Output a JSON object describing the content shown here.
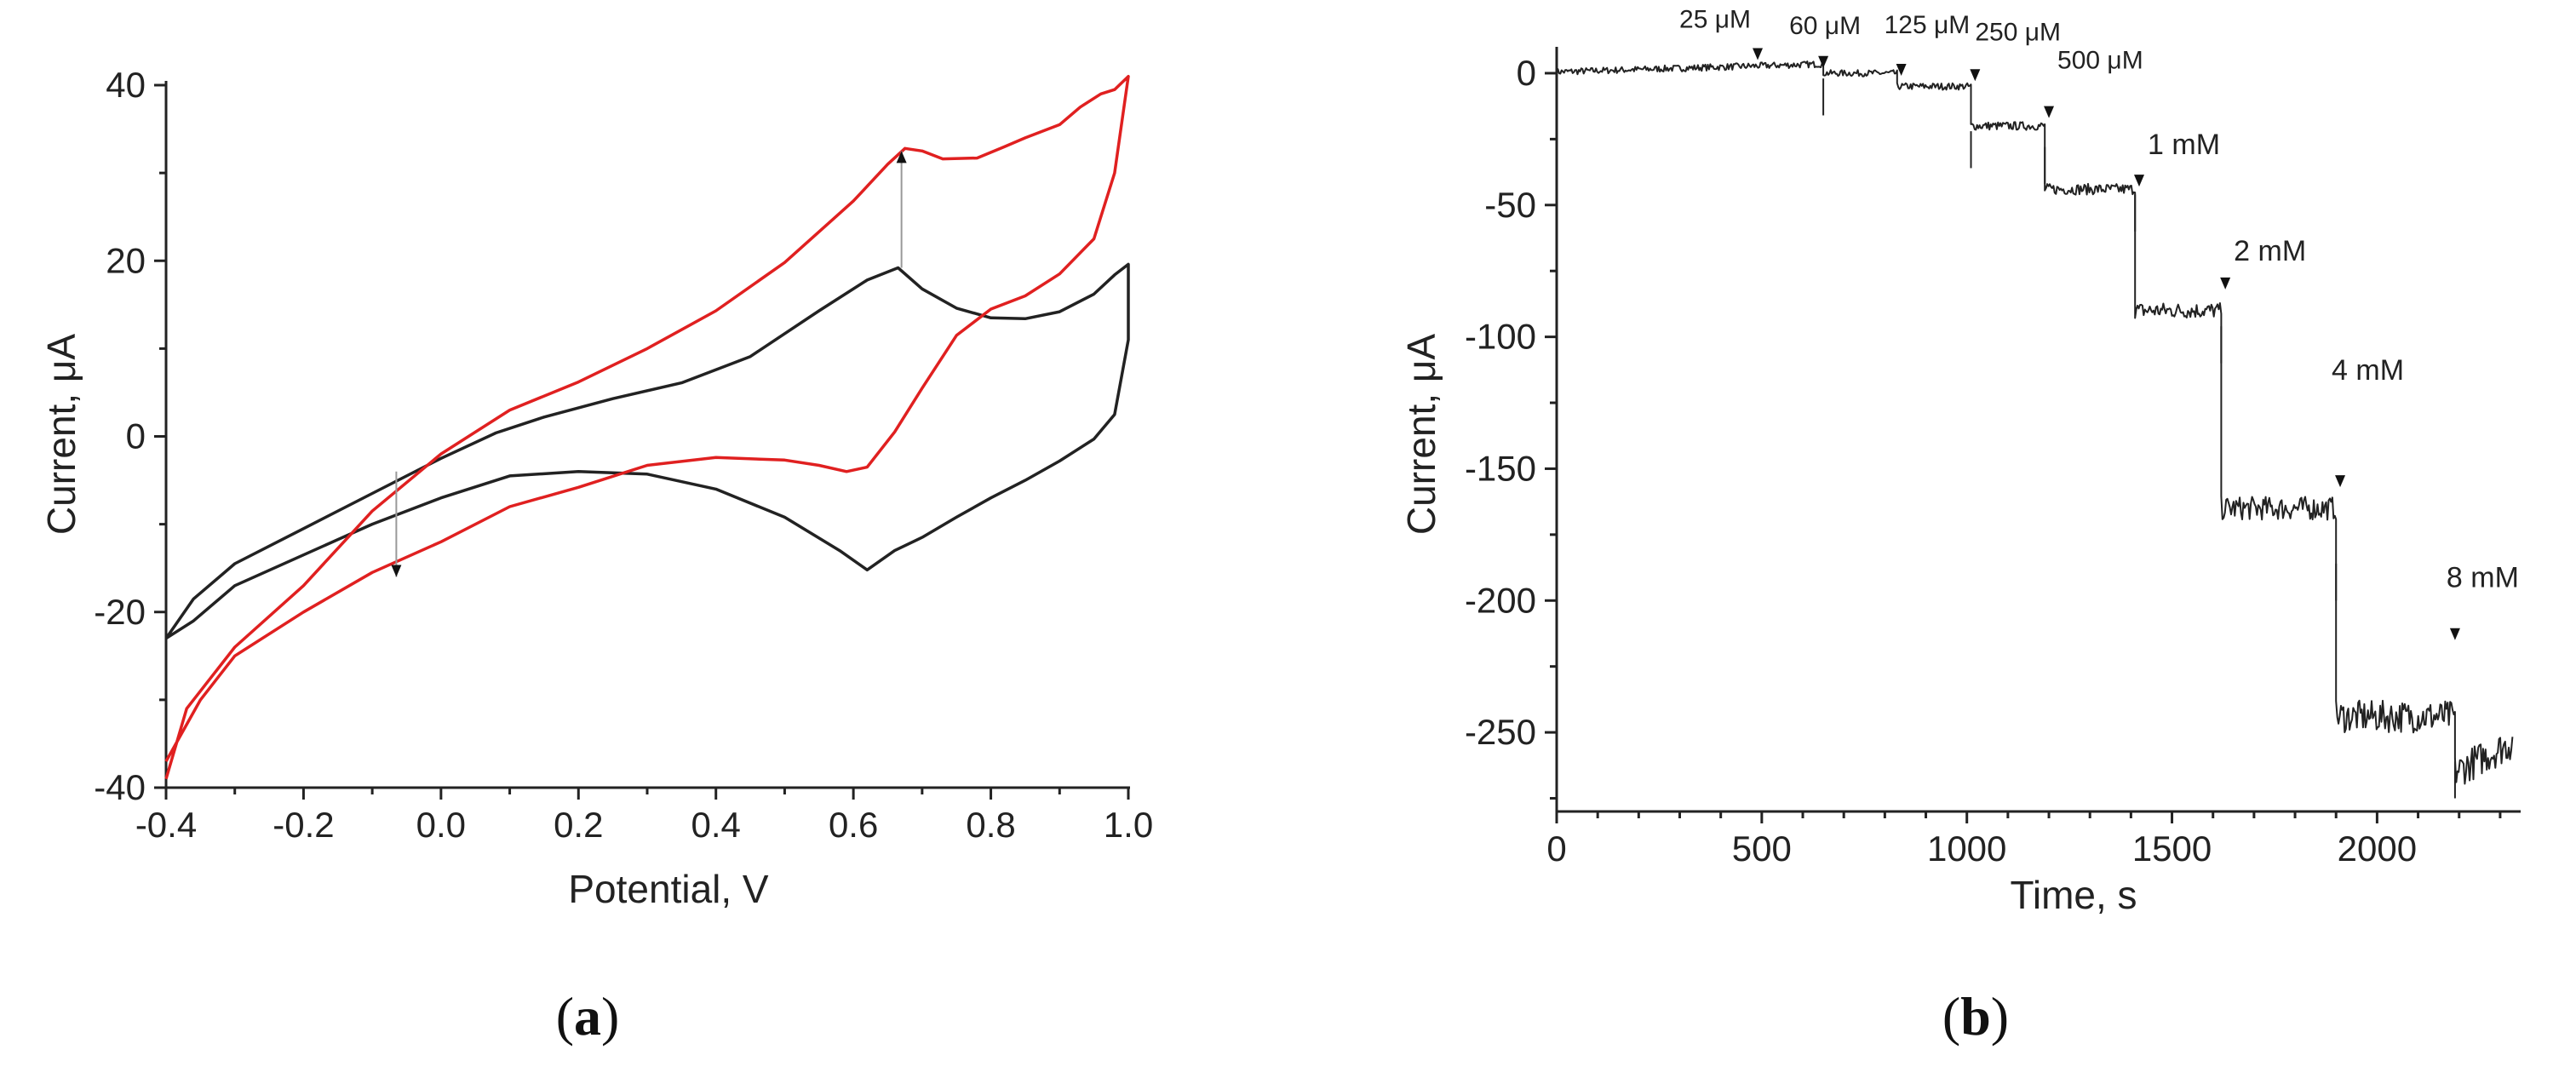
{
  "chart_data": [
    {
      "type": "line",
      "panel_label": "a",
      "xlabel": "Potential, V",
      "ylabel": "Current, μA",
      "xlim": [
        -0.4,
        1.0
      ],
      "ylim": [
        -40,
        40
      ],
      "x_ticks": [
        "-0.4",
        "-0.2",
        "0.0",
        "0.2",
        "0.4",
        "0.6",
        "0.8",
        "1.0"
      ],
      "y_ticks": [
        "40",
        "20",
        "0",
        "-20",
        "-40"
      ],
      "series": [
        {
          "color": "#222222",
          "points": [
            [
              -0.4,
              -23
            ],
            [
              -0.36,
              -18.5
            ],
            [
              -0.3,
              -14.5
            ],
            [
              -0.2,
              -10.5
            ],
            [
              -0.1,
              -6.5
            ],
            [
              0.0,
              -2.5
            ],
            [
              0.08,
              0.4
            ],
            [
              0.15,
              2.2
            ],
            [
              0.25,
              4.3
            ],
            [
              0.35,
              6.1
            ],
            [
              0.45,
              9.1
            ],
            [
              0.55,
              14.3
            ],
            [
              0.62,
              17.8
            ],
            [
              0.665,
              19.2
            ],
            [
              0.7,
              16.8
            ],
            [
              0.75,
              14.6
            ],
            [
              0.8,
              13.5
            ],
            [
              0.85,
              13.4
            ],
            [
              0.9,
              14.2
            ],
            [
              0.95,
              16.2
            ],
            [
              0.98,
              18.4
            ],
            [
              1.0,
              19.6
            ],
            [
              1.0,
              11.0
            ],
            [
              0.98,
              2.5
            ],
            [
              0.95,
              -0.3
            ],
            [
              0.9,
              -2.8
            ],
            [
              0.85,
              -5.0
            ],
            [
              0.8,
              -7.0
            ],
            [
              0.75,
              -9.2
            ],
            [
              0.7,
              -11.5
            ],
            [
              0.66,
              -13.0
            ],
            [
              0.62,
              -15.2
            ],
            [
              0.58,
              -13.0
            ],
            [
              0.5,
              -9.2
            ],
            [
              0.4,
              -6.0
            ],
            [
              0.3,
              -4.3
            ],
            [
              0.2,
              -4.0
            ],
            [
              0.1,
              -4.5
            ],
            [
              0.0,
              -7.0
            ],
            [
              -0.1,
              -10.0
            ],
            [
              -0.2,
              -13.5
            ],
            [
              -0.3,
              -17.0
            ],
            [
              -0.36,
              -21.0
            ],
            [
              -0.4,
              -23
            ]
          ]
        },
        {
          "color": "#e02020",
          "points": [
            [
              -0.4,
              -39
            ],
            [
              -0.37,
              -31
            ],
            [
              -0.3,
              -24
            ],
            [
              -0.2,
              -17
            ],
            [
              -0.1,
              -8.5
            ],
            [
              0.0,
              -2.0
            ],
            [
              0.1,
              3.0
            ],
            [
              0.2,
              6.2
            ],
            [
              0.3,
              10.0
            ],
            [
              0.4,
              14.3
            ],
            [
              0.5,
              19.8
            ],
            [
              0.6,
              26.8
            ],
            [
              0.65,
              31.0
            ],
            [
              0.675,
              32.8
            ],
            [
              0.7,
              32.5
            ],
            [
              0.73,
              31.6
            ],
            [
              0.78,
              31.7
            ],
            [
              0.82,
              33.0
            ],
            [
              0.85,
              34.0
            ],
            [
              0.9,
              35.5
            ],
            [
              0.93,
              37.5
            ],
            [
              0.96,
              39.0
            ],
            [
              0.98,
              39.5
            ],
            [
              1.0,
              41.0
            ],
            [
              0.98,
              30.0
            ],
            [
              0.95,
              22.5
            ],
            [
              0.9,
              18.5
            ],
            [
              0.85,
              16.0
            ],
            [
              0.8,
              14.5
            ],
            [
              0.75,
              11.5
            ],
            [
              0.7,
              5.5
            ],
            [
              0.66,
              0.5
            ],
            [
              0.62,
              -3.5
            ],
            [
              0.59,
              -4.0
            ],
            [
              0.55,
              -3.3
            ],
            [
              0.5,
              -2.7
            ],
            [
              0.4,
              -2.4
            ],
            [
              0.3,
              -3.3
            ],
            [
              0.2,
              -5.8
            ],
            [
              0.1,
              -8.0
            ],
            [
              0.0,
              -12.0
            ],
            [
              -0.1,
              -15.5
            ],
            [
              -0.2,
              -20.0
            ],
            [
              -0.3,
              -25.0
            ],
            [
              -0.35,
              -30.0
            ],
            [
              -0.4,
              -37.0
            ]
          ]
        }
      ],
      "annotations": [
        {
          "type": "arrow",
          "x": 0.67,
          "from_y": 19.2,
          "to_y": 32.5
        },
        {
          "type": "arrow",
          "x": -0.065,
          "from_y": -4,
          "to_y": -16
        }
      ]
    },
    {
      "type": "line",
      "panel_label": "b",
      "xlabel": "Time, s",
      "ylabel": "Current, μA",
      "xlim": [
        0,
        2350
      ],
      "ylim": [
        -280,
        10
      ],
      "x_ticks": [
        "0",
        "500",
        "1000",
        "1500",
        "2000"
      ],
      "y_ticks": [
        "0",
        "-50",
        "-100",
        "-150",
        "-200",
        "-250"
      ],
      "series": [
        {
          "color": "#222222",
          "steps": [
            {
              "t_start": 0,
              "t_end": 650,
              "level": 3
            },
            {
              "t_start": 650,
              "t_end": 830,
              "level": 0
            },
            {
              "t_start": 830,
              "t_end": 1010,
              "level": -5
            },
            {
              "t_start": 1010,
              "t_end": 1190,
              "level": -20
            },
            {
              "t_start": 1190,
              "t_end": 1410,
              "level": -44
            },
            {
              "t_start": 1410,
              "t_end": 1620,
              "level": -90
            },
            {
              "t_start": 1620,
              "t_end": 1900,
              "level": -165
            },
            {
              "t_start": 1900,
              "t_end": 2190,
              "level": -244
            },
            {
              "t_start": 2190,
              "t_end": 2330,
              "level": -265
            }
          ]
        }
      ],
      "annotations": [
        {
          "text": "25 μM",
          "x": 490,
          "y": 5
        },
        {
          "text": "60 μM",
          "x": 650,
          "y": 2
        },
        {
          "text": "125 μM",
          "x": 840,
          "y": -1
        },
        {
          "text": "250 μM",
          "x": 1020,
          "y": -3
        },
        {
          "text": "500 μM",
          "x": 1200,
          "y": -17
        },
        {
          "text": "1 mM",
          "x": 1420,
          "y": -43
        },
        {
          "text": "2 mM",
          "x": 1630,
          "y": -82
        },
        {
          "text": "4 mM",
          "x": 1910,
          "y": -157
        },
        {
          "text": "8 mM",
          "x": 2190,
          "y": -215
        }
      ]
    }
  ]
}
